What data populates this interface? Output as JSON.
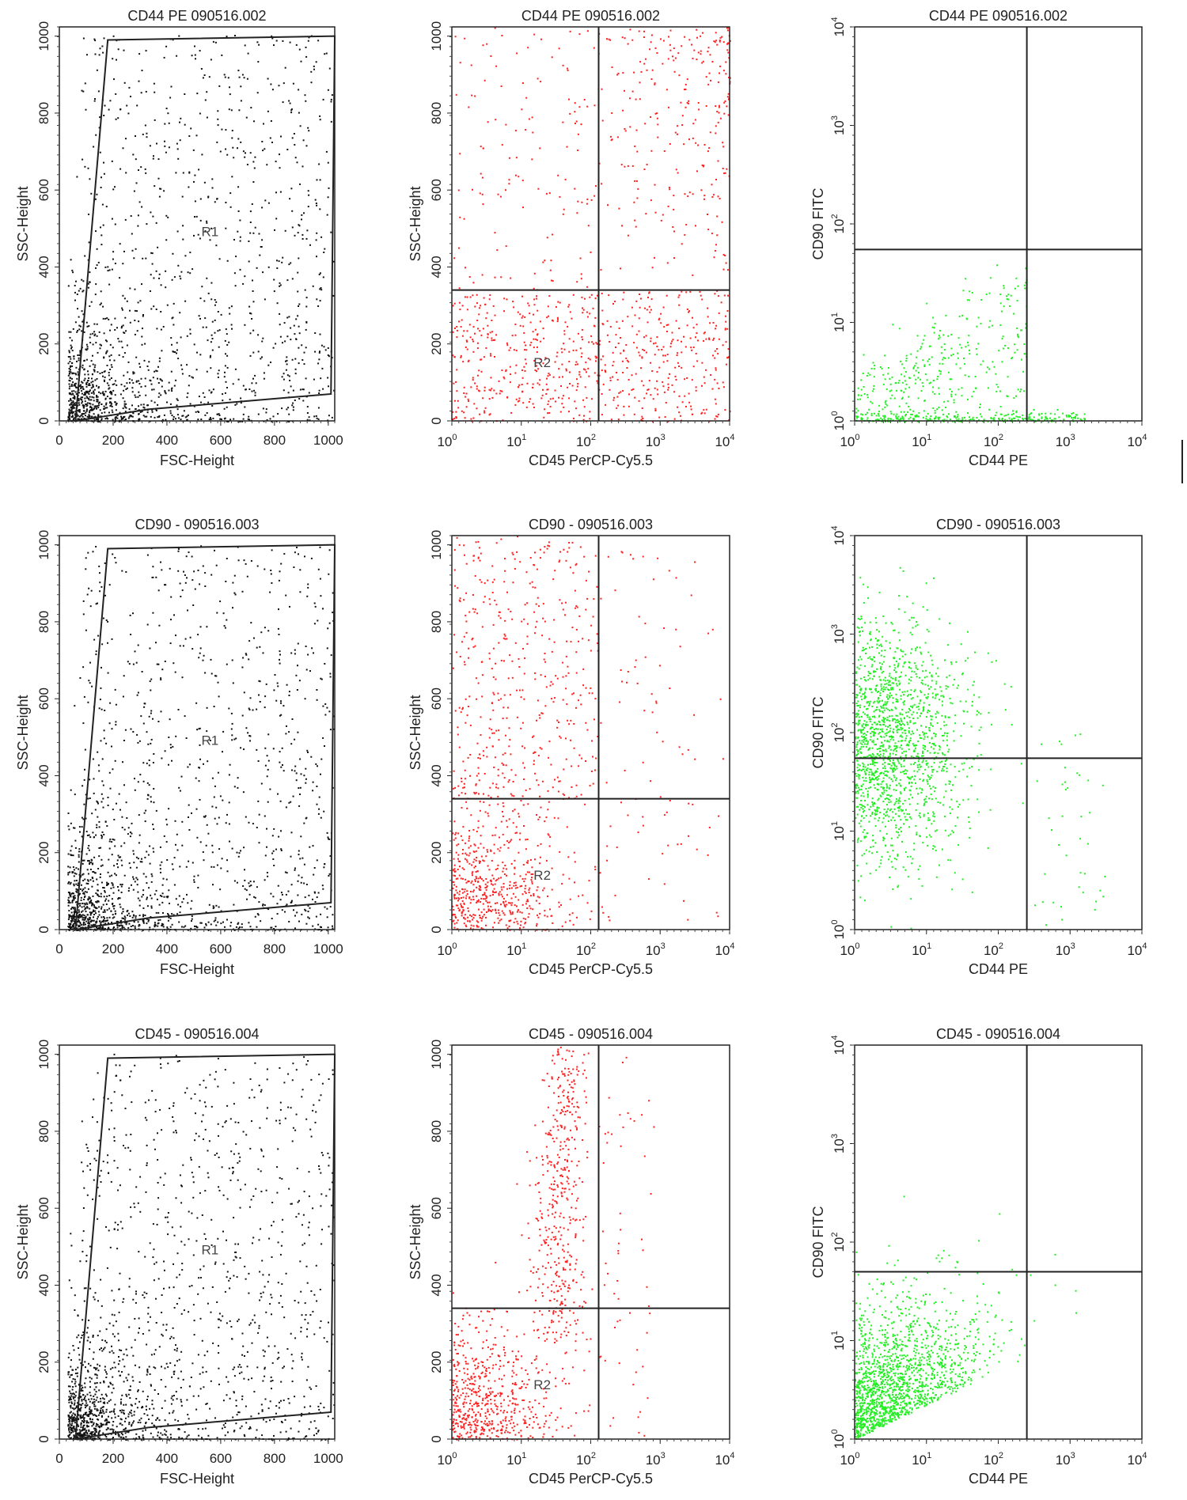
{
  "chart_data": [
    {
      "type": "scatter",
      "panel": "row1-col1",
      "title": "CD44 PE 090516.002",
      "xlabel": "FSC-Height",
      "ylabel": "SSC-Height",
      "xscale": "linear",
      "yscale": "linear",
      "xlim": [
        0,
        1024
      ],
      "ylim": [
        0,
        1024
      ],
      "xticks": [
        "0",
        "200",
        "400",
        "600",
        "800",
        "1000"
      ],
      "yticks": [
        "0",
        "200",
        "400",
        "600",
        "800",
        "1000"
      ],
      "point_color": "#111111",
      "gate": {
        "name": "R1",
        "polygon": [
          [
            180,
            990
          ],
          [
            1024,
            1000
          ],
          [
            1010,
            70
          ],
          [
            330,
            30
          ],
          [
            60,
            0
          ]
        ]
      },
      "region_labels": [
        {
          "text": "R1",
          "x": 560,
          "y": 480
        }
      ]
    },
    {
      "type": "scatter",
      "panel": "row1-col2",
      "title": "CD44 PE 090516.002",
      "xlabel": "CD45 PerCP-Cy5.5",
      "ylabel": "SSC-Height",
      "xscale": "log",
      "yscale": "linear",
      "xlim": [
        1,
        10000
      ],
      "ylim": [
        0,
        1024
      ],
      "xticks": [
        "10^0",
        "10^1",
        "10^2",
        "10^3",
        "10^4"
      ],
      "yticks": [
        "0",
        "200",
        "400",
        "600",
        "800",
        "1000"
      ],
      "point_color": "#ff2020",
      "quadrant": {
        "x": 130,
        "y": 340
      },
      "region_labels": [
        {
          "text": "R2",
          "x": 20,
          "y": 140
        }
      ]
    },
    {
      "type": "scatter",
      "panel": "row1-col3",
      "title": "CD44 PE 090516.002",
      "xlabel": "CD44 PE",
      "ylabel": "CD90 FITC",
      "xscale": "log",
      "yscale": "log",
      "xlim": [
        1,
        10000
      ],
      "ylim": [
        1,
        10000
      ],
      "xticks": [
        "10^0",
        "10^1",
        "10^2",
        "10^3",
        "10^4"
      ],
      "yticks": [
        "10^0",
        "10^1",
        "10^2",
        "10^3",
        "10^4"
      ],
      "point_color": "#22ee22",
      "quadrant": {
        "x": 250,
        "y": 55
      }
    },
    {
      "type": "scatter",
      "panel": "row2-col1",
      "title": "CD90 - 090516.003",
      "xlabel": "FSC-Height",
      "ylabel": "SSC-Height",
      "xscale": "linear",
      "yscale": "linear",
      "xlim": [
        0,
        1024
      ],
      "ylim": [
        0,
        1024
      ],
      "xticks": [
        "0",
        "200",
        "400",
        "600",
        "800",
        "1000"
      ],
      "yticks": [
        "0",
        "200",
        "400",
        "600",
        "800",
        "1000"
      ],
      "point_color": "#111111",
      "gate": {
        "name": "R1",
        "polygon": [
          [
            180,
            990
          ],
          [
            1024,
            1000
          ],
          [
            1010,
            70
          ],
          [
            330,
            30
          ],
          [
            60,
            0
          ]
        ]
      },
      "region_labels": [
        {
          "text": "R1",
          "x": 560,
          "y": 480
        }
      ]
    },
    {
      "type": "scatter",
      "panel": "row2-col2",
      "title": "CD90 - 090516.003",
      "xlabel": "CD45 PerCP-Cy5.5",
      "ylabel": "SSC-Height",
      "xscale": "log",
      "yscale": "linear",
      "xlim": [
        1,
        10000
      ],
      "ylim": [
        0,
        1024
      ],
      "xticks": [
        "10^0",
        "10^1",
        "10^2",
        "10^3",
        "10^4"
      ],
      "yticks": [
        "0",
        "200",
        "400",
        "600",
        "800",
        "1000"
      ],
      "point_color": "#ff2020",
      "quadrant": {
        "x": 130,
        "y": 340
      },
      "region_labels": [
        {
          "text": "R2",
          "x": 20,
          "y": 130
        }
      ]
    },
    {
      "type": "scatter",
      "panel": "row2-col3",
      "title": "CD90 - 090516.003",
      "xlabel": "CD44 PE",
      "ylabel": "CD90 FITC",
      "xscale": "log",
      "yscale": "log",
      "xlim": [
        1,
        10000
      ],
      "ylim": [
        1,
        10000
      ],
      "xticks": [
        "10^0",
        "10^1",
        "10^2",
        "10^3",
        "10^4"
      ],
      "yticks": [
        "10^0",
        "10^1",
        "10^2",
        "10^3",
        "10^4"
      ],
      "point_color": "#22ee22",
      "quadrant": {
        "x": 250,
        "y": 55
      }
    },
    {
      "type": "scatter",
      "panel": "row3-col1",
      "title": "CD45 - 090516.004",
      "xlabel": "FSC-Height",
      "ylabel": "SSC-Height",
      "xscale": "linear",
      "yscale": "linear",
      "xlim": [
        0,
        1024
      ],
      "ylim": [
        0,
        1024
      ],
      "xticks": [
        "0",
        "200",
        "400",
        "600",
        "800",
        "1000"
      ],
      "yticks": [
        "0",
        "200",
        "400",
        "600",
        "800",
        "1000"
      ],
      "point_color": "#111111",
      "gate": {
        "name": "R1",
        "polygon": [
          [
            180,
            990
          ],
          [
            1024,
            1000
          ],
          [
            1010,
            70
          ],
          [
            330,
            30
          ],
          [
            60,
            0
          ]
        ]
      },
      "region_labels": [
        {
          "text": "R1",
          "x": 560,
          "y": 480
        }
      ]
    },
    {
      "type": "scatter",
      "panel": "row3-col2",
      "title": "CD45 - 090516.004",
      "xlabel": "CD45 PerCP-Cy5.5",
      "ylabel": "SSC-Height",
      "xscale": "log",
      "yscale": "linear",
      "xlim": [
        1,
        10000
      ],
      "ylim": [
        0,
        1024
      ],
      "xticks": [
        "10^0",
        "10^1",
        "10^2",
        "10^3",
        "10^4"
      ],
      "yticks": [
        "0",
        "200",
        "400",
        "600",
        "800",
        "1000"
      ],
      "point_color": "#ff2020",
      "quadrant": {
        "x": 130,
        "y": 340
      },
      "region_labels": [
        {
          "text": "R2",
          "x": 20,
          "y": 130
        }
      ]
    },
    {
      "type": "scatter",
      "panel": "row3-col3",
      "title": "CD45 - 090516.004",
      "xlabel": "CD44 PE",
      "ylabel": "CD90 FITC",
      "xscale": "log",
      "yscale": "log",
      "xlim": [
        1,
        10000
      ],
      "ylim": [
        1,
        10000
      ],
      "xticks": [
        "10^0",
        "10^1",
        "10^2",
        "10^3",
        "10^4"
      ],
      "yticks": [
        "10^0",
        "10^1",
        "10^2",
        "10^3",
        "10^4"
      ],
      "point_color": "#22ee22",
      "quadrant": {
        "x": 250,
        "y": 50
      }
    }
  ]
}
